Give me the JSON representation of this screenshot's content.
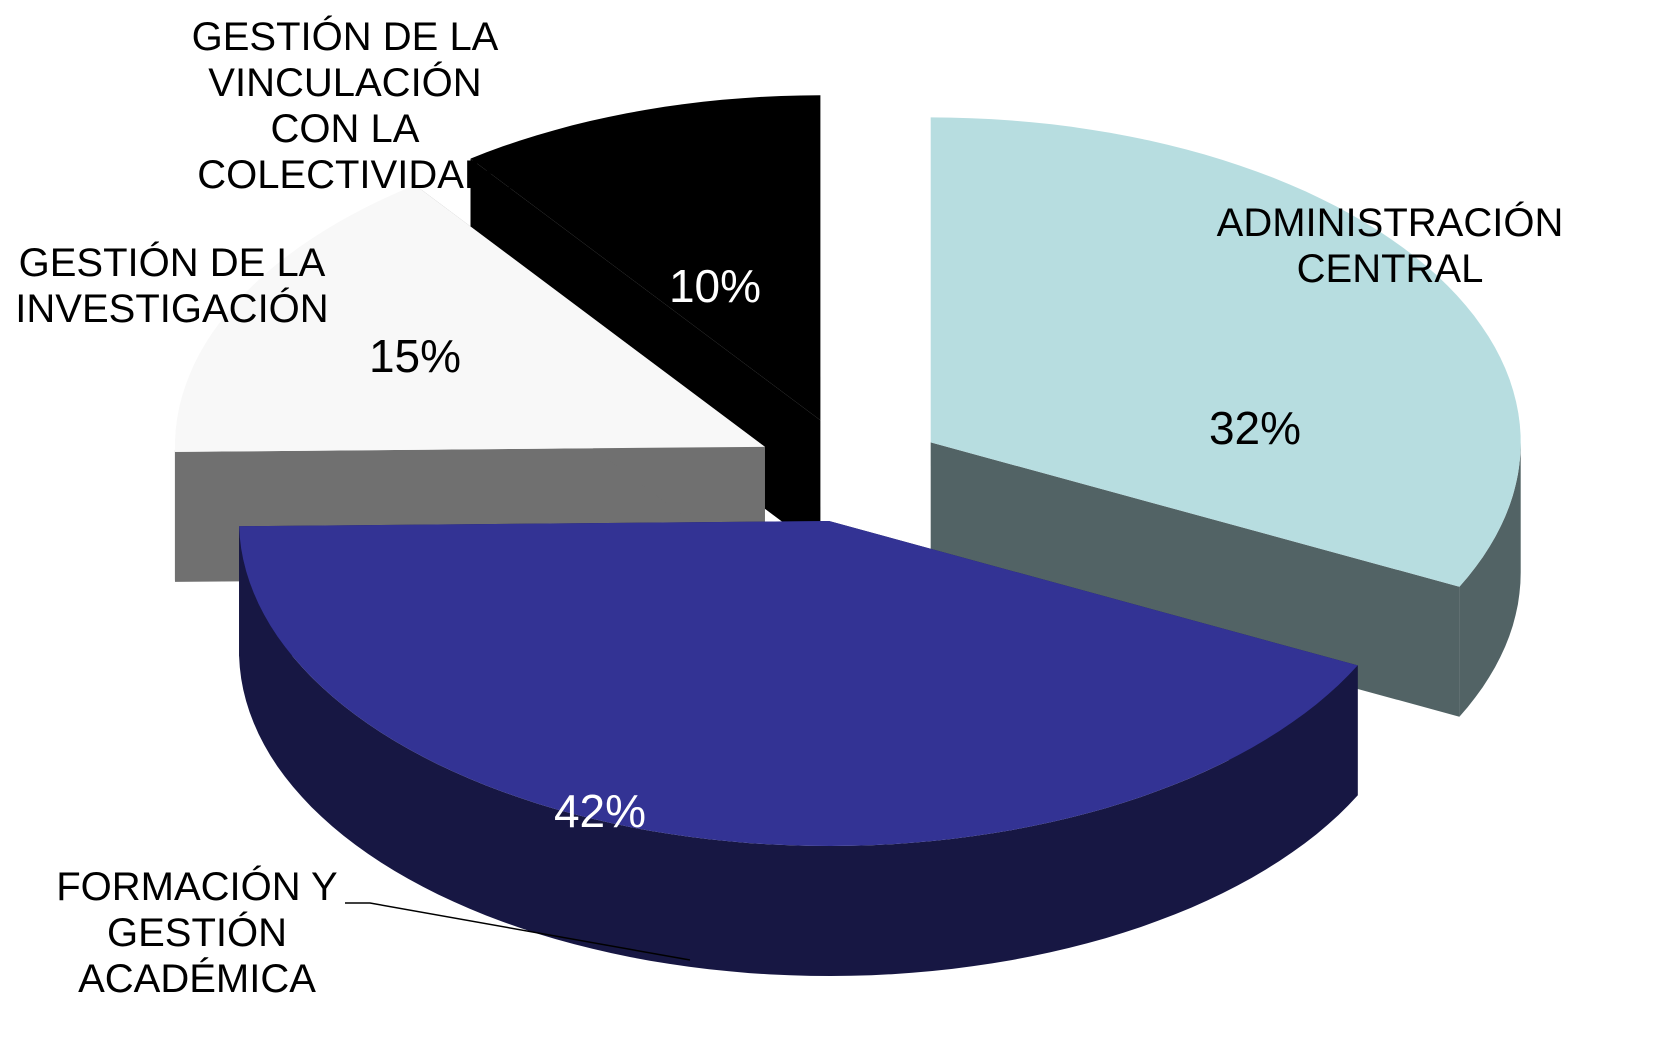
{
  "chart_data": {
    "type": "pie3d",
    "categories": [
      "ADMINISTRACIÓN\nCENTRAL",
      "FORMACIÓN Y\nGESTIÓN\nACADÉMICA",
      "GESTIÓN DE LA\nINVESTIGACIÓN",
      "GESTIÓN DE LA\nVINCULACIÓN\nCON LA\nCOLECTIVIDAD"
    ],
    "values": [
      32,
      42,
      15,
      10
    ],
    "value_labels": [
      "32%",
      "42%",
      "15%",
      "10%"
    ],
    "colors": [
      "#b7dde0",
      "#333394",
      "#f8f8f8",
      "#000000"
    ]
  }
}
